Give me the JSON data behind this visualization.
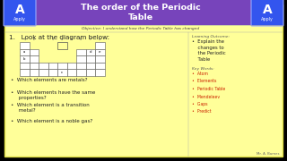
{
  "title": "The order of the Periodic\nTable",
  "title_bg": "#7744bb",
  "title_color": "#ffffff",
  "slide_bg": "#ffff99",
  "header_label_bg": "#3355ee",
  "objective": "Objective: I understand how the Periodic Table has changed",
  "question": "1.   Look at the diagram below:",
  "bullets": [
    "Which elements are metals?",
    "Which elements have the same\n     properties?",
    "Which element is a transition\n     metal?",
    "Which element is a noble gas?"
  ],
  "learning_outcome_title": "Learning Outcome:",
  "learning_outcome": "•  Explain the\n    changes to\n    the Periodic\n    Table",
  "key_words_title": "Key Words:",
  "key_words": [
    "•  Atom",
    "•  Elements",
    "•  Periodic Table",
    "•  Mendeleev",
    "•  Gaps",
    "•  Predict"
  ],
  "key_words_color": "#cc2200",
  "text_color": "#222222",
  "credit": "Mr. A. Barnes"
}
